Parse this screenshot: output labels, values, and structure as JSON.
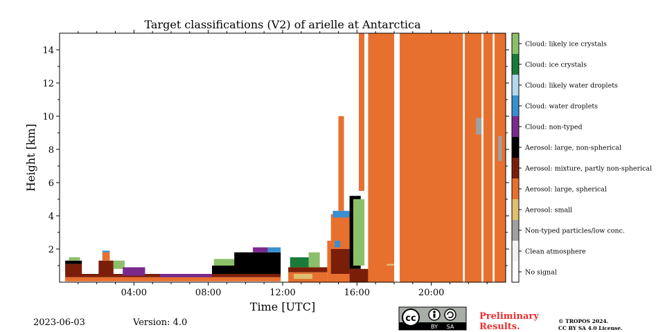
{
  "chart_data": {
    "type": "heatmap",
    "title": "Target classifications (V2) of arielle at Antarctica",
    "xlabel": "Time [UTC]",
    "ylabel": "Height [km]",
    "xlim_hours": [
      0,
      24
    ],
    "ylim_km": [
      0,
      15
    ],
    "x_ticks": [
      {
        "hour": 4,
        "label": "04:00"
      },
      {
        "hour": 8,
        "label": "08:00"
      },
      {
        "hour": 12,
        "label": "12:00"
      },
      {
        "hour": 16,
        "label": "16:00"
      },
      {
        "hour": 20,
        "label": "20:00"
      }
    ],
    "y_ticks": [
      {
        "km": 2,
        "label": "2"
      },
      {
        "km": 4,
        "label": "4"
      },
      {
        "km": 6,
        "label": "6"
      },
      {
        "km": 8,
        "label": "8"
      },
      {
        "km": 10,
        "label": "10"
      },
      {
        "km": 12,
        "label": "12"
      },
      {
        "km": 14,
        "label": "14"
      }
    ],
    "classes": [
      {
        "label": "Cloud: likely ice crystals",
        "color": "#8cbf6a"
      },
      {
        "label": "Cloud: ice crystals",
        "color": "#1a7a3a"
      },
      {
        "label": "Cloud: likely water droplets",
        "color": "#b3d8f0"
      },
      {
        "label": "Cloud: water droplets",
        "color": "#3a8fd0"
      },
      {
        "label": "Cloud: non-typed",
        "color": "#7a2a8c"
      },
      {
        "label": "Aerosol: large, non-spherical",
        "color": "#000000"
      },
      {
        "label": "Aerosol: mixture, partly non-spherical",
        "color": "#7a1e0a"
      },
      {
        "label": "Aerosol: large, spherical",
        "color": "#e8702e"
      },
      {
        "label": "Aerosol: small",
        "color": "#e0c070"
      },
      {
        "label": "Non-typed particles/low conc.",
        "color": "#a0a0a0"
      },
      {
        "label": "Clean atmosphere",
        "color": "#f2f2f2"
      },
      {
        "label": "No signal",
        "color": "#ffffff"
      }
    ],
    "regions": [
      {
        "cls": "Aerosol: large, spherical",
        "t0": 0.3,
        "t1": 11.9,
        "h0": 0.05,
        "h1": 0.3
      },
      {
        "cls": "Aerosol: mixture, partly non-spherical",
        "t0": 0.3,
        "t1": 11.9,
        "h0": 0.3,
        "h1": 0.5
      },
      {
        "cls": "Aerosol: mixture, partly non-spherical",
        "t0": 0.3,
        "t1": 1.2,
        "h0": 0.5,
        "h1": 1.1
      },
      {
        "cls": "Aerosol: large, non-spherical",
        "t0": 0.3,
        "t1": 1.2,
        "h0": 1.1,
        "h1": 1.3
      },
      {
        "cls": "Cloud: likely ice crystals",
        "t0": 0.5,
        "t1": 1.1,
        "h0": 1.3,
        "h1": 1.5
      },
      {
        "cls": "Aerosol: mixture, partly non-spherical",
        "t0": 2.1,
        "t1": 2.9,
        "h0": 0.5,
        "h1": 1.3
      },
      {
        "cls": "Aerosol: large, spherical",
        "t0": 2.3,
        "t1": 2.7,
        "h0": 1.3,
        "h1": 1.8
      },
      {
        "cls": "Cloud: water droplets",
        "t0": 2.3,
        "t1": 2.7,
        "h0": 1.8,
        "h1": 1.9
      },
      {
        "cls": "Cloud: likely ice crystals",
        "t0": 2.9,
        "t1": 3.5,
        "h0": 0.8,
        "h1": 1.3
      },
      {
        "cls": "Cloud: non-typed",
        "t0": 3.4,
        "t1": 4.6,
        "h0": 0.4,
        "h1": 0.9
      },
      {
        "cls": "Cloud: non-typed",
        "t0": 5.4,
        "t1": 8.2,
        "h0": 0.3,
        "h1": 0.5
      },
      {
        "cls": "Aerosol: large, non-spherical",
        "t0": 8.2,
        "t1": 11.9,
        "h0": 0.5,
        "h1": 1.0
      },
      {
        "cls": "Cloud: likely ice crystals",
        "t0": 8.3,
        "t1": 9.8,
        "h0": 1.0,
        "h1": 1.4
      },
      {
        "cls": "Aerosol: large, non-spherical",
        "t0": 9.4,
        "t1": 11.9,
        "h0": 1.0,
        "h1": 1.8
      },
      {
        "cls": "Cloud: non-typed",
        "t0": 10.4,
        "t1": 11.2,
        "h0": 1.8,
        "h1": 2.1
      },
      {
        "cls": "Cloud: water droplets",
        "t0": 11.2,
        "t1": 11.9,
        "h0": 1.8,
        "h1": 2.1
      },
      {
        "cls": "Aerosol: large, spherical",
        "t0": 12.3,
        "t1": 14.4,
        "h0": 0.0,
        "h1": 0.6
      },
      {
        "cls": "Aerosol: small",
        "t0": 12.6,
        "t1": 13.6,
        "h0": 0.2,
        "h1": 0.5
      },
      {
        "cls": "Aerosol: mixture, partly non-spherical",
        "t0": 12.3,
        "t1": 14.4,
        "h0": 0.6,
        "h1": 0.9
      },
      {
        "cls": "Cloud: ice crystals",
        "t0": 12.4,
        "t1": 13.4,
        "h0": 0.9,
        "h1": 1.5
      },
      {
        "cls": "Cloud: likely ice crystals",
        "t0": 13.4,
        "t1": 14.0,
        "h0": 0.9,
        "h1": 1.8
      },
      {
        "cls": "Aerosol: large, spherical",
        "t0": 14.4,
        "t1": 15.6,
        "h0": 0.0,
        "h1": 2.5
      },
      {
        "cls": "Aerosol: mixture, partly non-spherical",
        "t0": 14.6,
        "t1": 15.6,
        "h0": 0.5,
        "h1": 2.0
      },
      {
        "cls": "Cloud: water droplets",
        "t0": 14.8,
        "t1": 15.1,
        "h0": 2.1,
        "h1": 2.5
      },
      {
        "cls": "Aerosol: large, spherical",
        "t0": 14.6,
        "t1": 15.8,
        "h0": 2.5,
        "h1": 4.1
      },
      {
        "cls": "Cloud: water droplets",
        "t0": 14.7,
        "t1": 15.6,
        "h0": 3.9,
        "h1": 4.3
      },
      {
        "cls": "Aerosol: large, non-spherical",
        "t0": 15.6,
        "t1": 16.2,
        "h0": 0.8,
        "h1": 5.2
      },
      {
        "cls": "Cloud: likely ice crystals",
        "t0": 15.8,
        "t1": 16.4,
        "h0": 1.0,
        "h1": 5.0
      },
      {
        "cls": "Aerosol: mixture, partly non-spherical",
        "t0": 15.6,
        "t1": 16.6,
        "h0": 0.0,
        "h1": 0.8
      },
      {
        "cls": "Aerosol: large, spherical",
        "t0": 15.0,
        "t1": 15.3,
        "h0": 4.3,
        "h1": 10.0
      },
      {
        "cls": "Aerosol: large, spherical",
        "t0": 16.1,
        "t1": 16.4,
        "h0": 5.5,
        "h1": 15.0
      },
      {
        "cls": "Aerosol: large, spherical",
        "t0": 16.6,
        "t1": 18.0,
        "h0": 0.0,
        "h1": 15.0
      },
      {
        "cls": "Aerosol: large, spherical",
        "t0": 18.3,
        "t1": 24.0,
        "h0": 0.0,
        "h1": 15.0
      },
      {
        "cls": "Aerosol: small",
        "t0": 17.6,
        "t1": 18.0,
        "h0": 1.0,
        "h1": 1.1
      },
      {
        "cls": "Non-typed particles/low conc.",
        "t0": 22.4,
        "t1": 22.8,
        "h0": 8.9,
        "h1": 9.9
      },
      {
        "cls": "Non-typed particles/low conc.",
        "t0": 23.6,
        "t1": 23.8,
        "h0": 7.3,
        "h1": 8.8
      }
    ],
    "gaps": [
      {
        "t0": 11.9,
        "t1": 12.3
      },
      {
        "t0": 18.0,
        "t1": 18.2
      },
      {
        "t0": 21.7,
        "t1": 21.8
      },
      {
        "t0": 22.7,
        "t1": 22.8
      },
      {
        "t0": 23.3,
        "t1": 23.4
      }
    ]
  },
  "footer": {
    "date": "2023-06-03",
    "version": "Version: 4.0",
    "preliminary_line1": "Preliminary",
    "preliminary_line2": "Results.",
    "copyright_line1": "© TROPOS 2024.",
    "copyright_line2": "CC BY SA 4.0 License.",
    "cc_badge_text": "cc",
    "cc_by": "BY",
    "cc_sa": "SA"
  }
}
